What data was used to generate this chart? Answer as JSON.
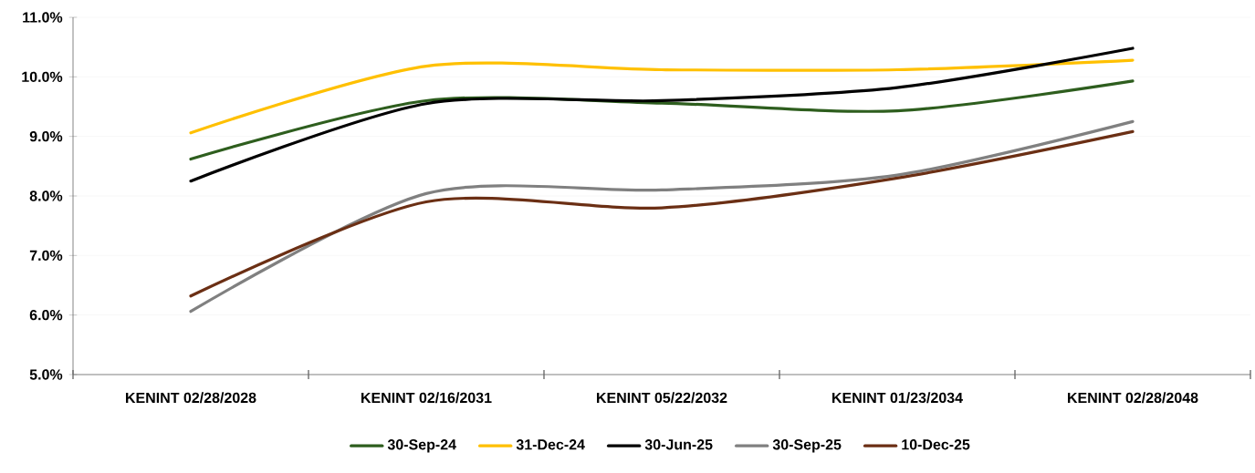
{
  "chart_data": {
    "type": "line",
    "categories": [
      "KENINT 02/28/2028",
      "KENINT 02/16/2031",
      "KENINT 05/22/2032",
      "KENINT 01/23/2034",
      "KENINT 02/28/2048"
    ],
    "series": [
      {
        "name": "30-Sep-24",
        "color": "#2e5e1e",
        "values": [
          8.62,
          9.6,
          9.56,
          9.43,
          9.93
        ]
      },
      {
        "name": "31-Dec-24",
        "color": "#ffc000",
        "values": [
          9.06,
          10.18,
          10.12,
          10.12,
          10.28
        ]
      },
      {
        "name": "30-Jun-25",
        "color": "#000000",
        "values": [
          8.25,
          9.55,
          9.6,
          9.82,
          10.48
        ]
      },
      {
        "name": "30-Sep-25",
        "color": "#808080",
        "values": [
          6.06,
          8.04,
          8.1,
          8.35,
          9.25
        ]
      },
      {
        "name": "10-Dec-25",
        "color": "#6b2f14",
        "values": [
          6.32,
          7.9,
          7.8,
          8.3,
          9.08
        ]
      }
    ],
    "ylim": [
      5,
      11
    ],
    "yticks": [
      {
        "value": 5,
        "label": "5.0%"
      },
      {
        "value": 6,
        "label": "6.0%"
      },
      {
        "value": 7,
        "label": "7.0%"
      },
      {
        "value": 8,
        "label": "8.0%"
      },
      {
        "value": 9,
        "label": "9.0%"
      },
      {
        "value": 10,
        "label": "10.0%"
      },
      {
        "value": 11,
        "label": "11.0%"
      }
    ],
    "grid": "y",
    "legend": "bottom",
    "marker": "none",
    "line_style": "solid"
  }
}
